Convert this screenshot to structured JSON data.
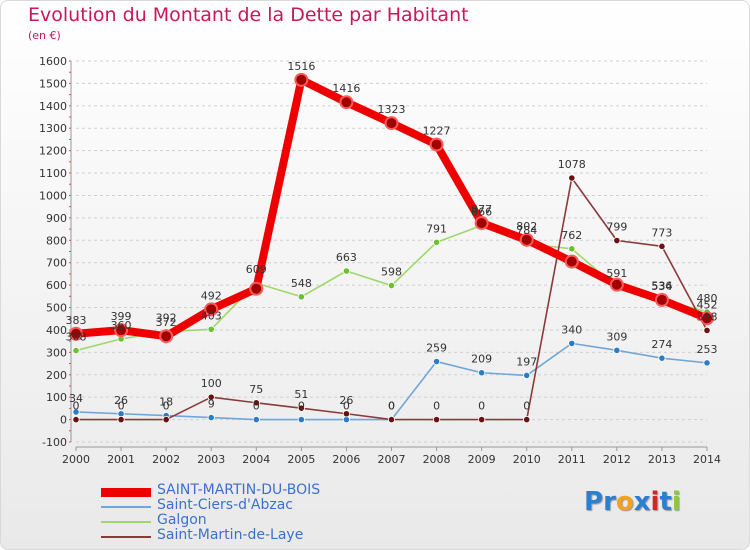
{
  "title": "Evolution du Montant de la Dette par Habitant",
  "subtitle": "(en €)",
  "logo_text": [
    "P",
    "r",
    "o",
    "x",
    "i",
    "t",
    "i"
  ],
  "logo_colors": [
    "#2a7fd0",
    "#2a7fd0",
    "#f2a21b",
    "#2a7fd0",
    "#cc2a2a",
    "#2a7fd0",
    "#8dc63f"
  ],
  "chart_data": {
    "type": "line",
    "x": [
      2000,
      2001,
      2002,
      2003,
      2004,
      2005,
      2006,
      2007,
      2008,
      2009,
      2010,
      2011,
      2012,
      2013,
      2014
    ],
    "ylim": [
      -100,
      1600
    ],
    "yticks": [
      -100,
      0,
      100,
      200,
      300,
      400,
      500,
      600,
      700,
      800,
      900,
      1000,
      1100,
      1200,
      1300,
      1400,
      1500,
      1600
    ],
    "grid": "horizontal",
    "legend_position": "bottom-left",
    "series": [
      {
        "name": "SAINT-MARTIN-DU-BOIS",
        "color": "#ee0000",
        "marker": "#a00000",
        "thick": true,
        "values": [
          383,
          399,
          372,
          492,
          584,
          1516,
          1416,
          1323,
          1227,
          877,
          802,
          705,
          602,
          534,
          452
        ],
        "labels": [
          "383",
          "399",
          "372",
          "492",
          "",
          "1516",
          "1416",
          "1323",
          "1227",
          "877",
          "802",
          "",
          "",
          "534",
          "452"
        ]
      },
      {
        "name": "Saint-Ciers-d'Abzac",
        "color": "#6fa6d8",
        "marker": "#2e7bc4",
        "thick": false,
        "values": [
          34,
          26,
          18,
          9,
          0,
          0,
          0,
          0,
          259,
          209,
          197,
          340,
          309,
          274,
          253
        ],
        "labels": [
          "34",
          "26",
          "18",
          "9",
          "0",
          "0",
          "0",
          "0",
          "259",
          "209",
          "197",
          "340",
          "309",
          "274",
          "253"
        ]
      },
      {
        "name": "Galgon",
        "color": "#9fd86a",
        "marker": "#6cbf2e",
        "thick": false,
        "values": [
          308,
          360,
          392,
          403,
          609,
          548,
          663,
          598,
          791,
          866,
          784,
          762,
          591,
          536,
          480
        ],
        "labels": [
          "308",
          "360",
          "392",
          "403",
          "609",
          "548",
          "663",
          "598",
          "791",
          "866",
          "784",
          "762",
          "591",
          "536",
          "480"
        ]
      },
      {
        "name": "Saint-Martin-de-Laye",
        "color": "#8b3a3a",
        "marker": "#6a1010",
        "thick": false,
        "values": [
          0,
          0,
          0,
          100,
          75,
          51,
          26,
          0,
          0,
          0,
          0,
          1078,
          799,
          773,
          398
        ],
        "labels": [
          "0",
          "0",
          "0",
          "100",
          "75",
          "51",
          "26",
          "0",
          "0",
          "0",
          "0",
          "1078",
          "799",
          "773",
          "398"
        ]
      }
    ]
  }
}
